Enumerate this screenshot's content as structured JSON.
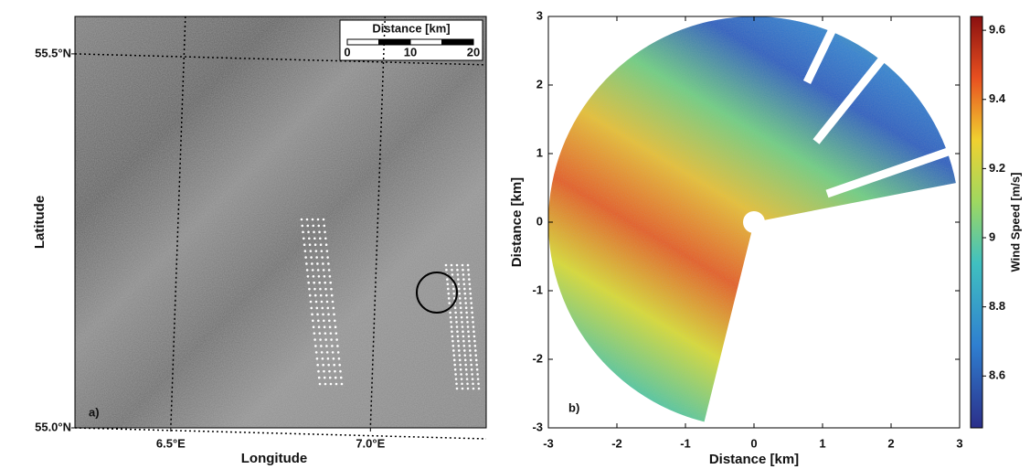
{
  "chart_data": [
    {
      "type": "image",
      "panel_label": "a)",
      "xlabel": "Longitude",
      "ylabel": "Latitude",
      "xlim": [
        6.26,
        7.29
      ],
      "ylim": [
        55.0,
        55.55
      ],
      "xticks": [
        {
          "value": 6.5,
          "label": "6.5°E"
        },
        {
          "value": 7.0,
          "label": "7.0°E"
        }
      ],
      "yticks": [
        {
          "value": 55.0,
          "label": "55.0°N"
        },
        {
          "value": 55.5,
          "label": "55.5°N"
        }
      ],
      "grid": true,
      "scalebar": {
        "label": "Distance [km]",
        "ticks": [
          0,
          10,
          20
        ]
      }
    },
    {
      "type": "heatmap",
      "panel_label": "b)",
      "xlabel": "Distance [km]",
      "ylabel": "Distance [km]",
      "xlim": [
        -3,
        3
      ],
      "ylim": [
        -3,
        3
      ],
      "xticks": [
        -3,
        -2,
        -1,
        0,
        1,
        2,
        3
      ],
      "yticks": [
        -3,
        -2,
        -1,
        0,
        1,
        2,
        3
      ],
      "colorbar": {
        "label": "Wind Speed [m/s]",
        "lim": [
          8.45,
          9.64
        ],
        "ticks": [
          8.6,
          8.8,
          9.0,
          9.2,
          9.4,
          9.6
        ]
      }
    }
  ]
}
